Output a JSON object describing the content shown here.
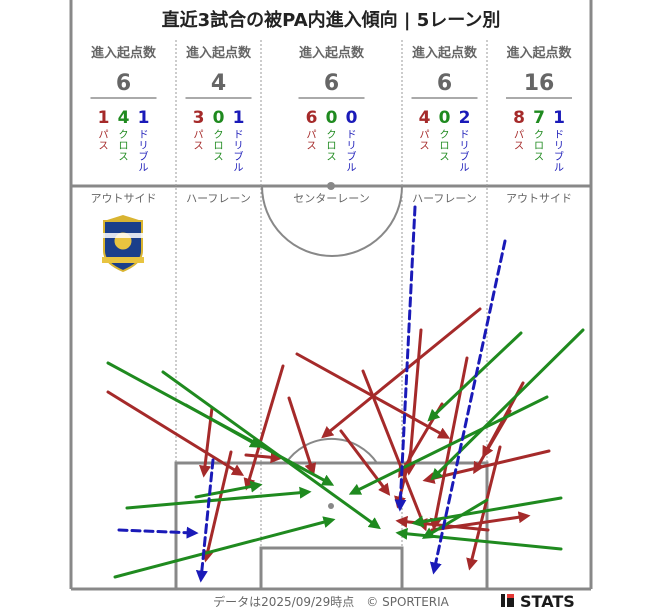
{
  "title": "直近3試合の被PA内進入傾向 | 5レーン別",
  "header_label": "進入起点数",
  "footer": "データは2025/09/29時点　© SPORTERIA",
  "brand": "STATS",
  "colors": {
    "pass": "#a52a2a",
    "cross": "#1f8a1f",
    "dribble": "#1a1ab8",
    "line": "#888888",
    "text": "#555555"
  },
  "chart_data": {
    "type": "table",
    "lanes": [
      {
        "name": "アウトサイド",
        "total": "6",
        "counts": [
          "1",
          "4",
          "1"
        ]
      },
      {
        "name": "ハーフレーン",
        "total": "4",
        "counts": [
          "3",
          "0",
          "1"
        ]
      },
      {
        "name": "センターレーン",
        "total": "6",
        "counts": [
          "6",
          "0",
          "0"
        ]
      },
      {
        "name": "ハーフレーン",
        "total": "6",
        "counts": [
          "4",
          "0",
          "2"
        ]
      },
      {
        "name": "アウトサイド",
        "total": "16",
        "counts": [
          "8",
          "7",
          "1"
        ]
      }
    ],
    "types": [
      {
        "key": "pass",
        "label": "パス"
      },
      {
        "key": "cross",
        "label": "クロス"
      },
      {
        "key": "dribble",
        "label": "ドリブル"
      }
    ]
  }
}
